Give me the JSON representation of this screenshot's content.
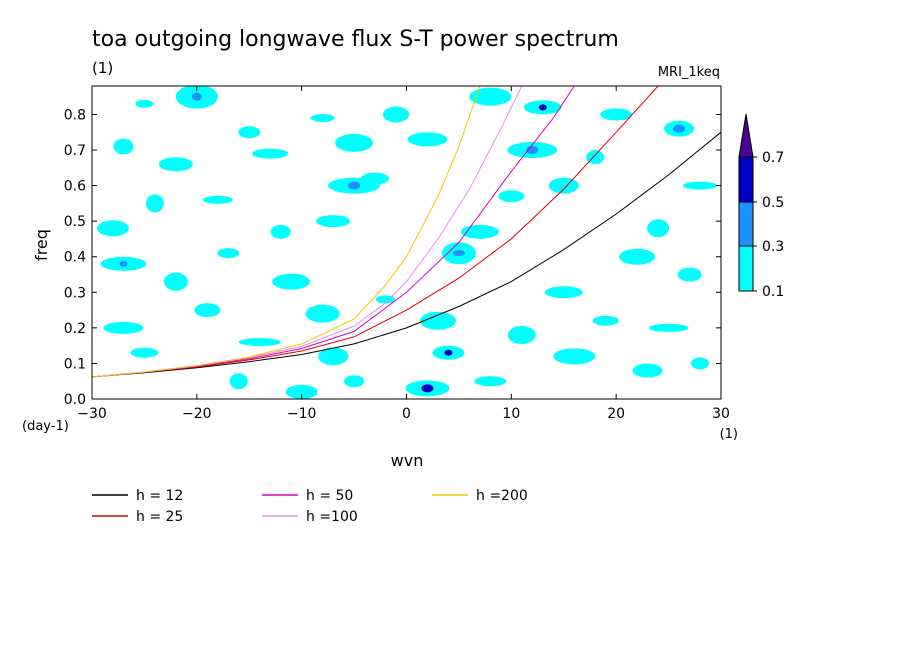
{
  "chart_data": {
    "type": "contour",
    "title": "toa outgoing longwave flux S-T power spectrum",
    "subtitle": "(1)",
    "model_label": "MRI_1keq",
    "xlabel": "wvn",
    "ylabel": "freq",
    "x_unit_label": "(1)",
    "y_unit_label": "(day-1)",
    "xlim": [
      -30,
      30
    ],
    "ylim": [
      0,
      0.88
    ],
    "xticks": [
      -30,
      -20,
      -10,
      0,
      10,
      20,
      30
    ],
    "yticks": [
      0.0,
      0.1,
      0.2,
      0.3,
      0.4,
      0.5,
      0.6,
      0.7,
      0.8
    ],
    "contour_levels": [
      0.1,
      0.3,
      0.5,
      0.7
    ],
    "level_colors": [
      "#00ffff",
      "#1e90ff",
      "#0000c8",
      "#4b0096"
    ],
    "colorbar_labels": [
      "0.1",
      "0.3",
      "0.5",
      "0.7"
    ],
    "colorbar_placement": "right",
    "background_color": "#ffffff",
    "series": [
      {
        "name": "h = 12",
        "color": "#000000",
        "x": [
          -30,
          -25,
          -20,
          -15,
          -10,
          -5,
          0,
          5,
          10,
          15,
          20,
          25,
          30
        ],
        "y": [
          0.062,
          0.074,
          0.088,
          0.105,
          0.125,
          0.155,
          0.2,
          0.26,
          0.33,
          0.42,
          0.52,
          0.63,
          0.75
        ]
      },
      {
        "name": "h = 25",
        "color": "#e00000",
        "x": [
          -30,
          -25,
          -20,
          -15,
          -10,
          -5,
          0,
          5,
          10,
          15,
          20,
          24
        ],
        "y": [
          0.062,
          0.075,
          0.09,
          0.11,
          0.135,
          0.175,
          0.25,
          0.34,
          0.45,
          0.59,
          0.75,
          0.88
        ]
      },
      {
        "name": "h = 50",
        "color": "#d800c0",
        "x": [
          -30,
          -25,
          -20,
          -15,
          -10,
          -5,
          0,
          5,
          10,
          14,
          16
        ],
        "y": [
          0.062,
          0.075,
          0.092,
          0.113,
          0.142,
          0.19,
          0.3,
          0.44,
          0.64,
          0.79,
          0.88
        ]
      },
      {
        "name": "h =100",
        "color": "#e090e8",
        "x": [
          -30,
          -25,
          -20,
          -15,
          -10,
          -5,
          -2,
          0,
          3,
          6,
          9,
          11
        ],
        "y": [
          0.062,
          0.076,
          0.093,
          0.116,
          0.148,
          0.205,
          0.27,
          0.33,
          0.45,
          0.59,
          0.76,
          0.88
        ]
      },
      {
        "name": "h =200",
        "color": "#f0c800",
        "x": [
          -30,
          -25,
          -20,
          -15,
          -10,
          -5,
          -2,
          0,
          3,
          5,
          7
        ],
        "y": [
          0.062,
          0.076,
          0.094,
          0.118,
          0.155,
          0.225,
          0.32,
          0.4,
          0.57,
          0.71,
          0.88
        ]
      }
    ],
    "legend_placement": "bottom",
    "shaded_regions": [
      {
        "x": -25,
        "y": 0.83,
        "level": 0.1
      },
      {
        "x": -20,
        "y": 0.85,
        "level": 0.3
      },
      {
        "x": -27,
        "y": 0.71,
        "level": 0.1
      },
      {
        "x": -22,
        "y": 0.66,
        "level": 0.1
      },
      {
        "x": -15,
        "y": 0.75,
        "level": 0.1
      },
      {
        "x": -13,
        "y": 0.69,
        "level": 0.1
      },
      {
        "x": -8,
        "y": 0.79,
        "level": 0.1
      },
      {
        "x": -5,
        "y": 0.72,
        "level": 0.1
      },
      {
        "x": -1,
        "y": 0.8,
        "level": 0.1
      },
      {
        "x": 2,
        "y": 0.73,
        "level": 0.1
      },
      {
        "x": -3,
        "y": 0.62,
        "level": 0.1
      },
      {
        "x": -5,
        "y": 0.6,
        "level": 0.3
      },
      {
        "x": -18,
        "y": 0.56,
        "level": 0.1
      },
      {
        "x": -24,
        "y": 0.55,
        "level": 0.1
      },
      {
        "x": -28,
        "y": 0.48,
        "level": 0.1
      },
      {
        "x": -12,
        "y": 0.47,
        "level": 0.1
      },
      {
        "x": -7,
        "y": 0.5,
        "level": 0.1
      },
      {
        "x": -17,
        "y": 0.41,
        "level": 0.1
      },
      {
        "x": -27,
        "y": 0.38,
        "level": 0.3
      },
      {
        "x": -22,
        "y": 0.33,
        "level": 0.1
      },
      {
        "x": -11,
        "y": 0.33,
        "level": 0.1
      },
      {
        "x": -19,
        "y": 0.25,
        "level": 0.1
      },
      {
        "x": -27,
        "y": 0.2,
        "level": 0.1
      },
      {
        "x": -25,
        "y": 0.13,
        "level": 0.1
      },
      {
        "x": -14,
        "y": 0.16,
        "level": 0.1
      },
      {
        "x": -7,
        "y": 0.12,
        "level": 0.1
      },
      {
        "x": -16,
        "y": 0.05,
        "level": 0.1
      },
      {
        "x": -10,
        "y": 0.02,
        "level": 0.1
      },
      {
        "x": -5,
        "y": 0.05,
        "level": 0.1
      },
      {
        "x": 2,
        "y": 0.03,
        "level": 0.5
      },
      {
        "x": 4,
        "y": 0.13,
        "level": 0.5
      },
      {
        "x": 3,
        "y": 0.22,
        "level": 0.1
      },
      {
        "x": 5,
        "y": 0.41,
        "level": 0.3
      },
      {
        "x": 7,
        "y": 0.47,
        "level": 0.1
      },
      {
        "x": 10,
        "y": 0.57,
        "level": 0.1
      },
      {
        "x": 12,
        "y": 0.7,
        "level": 0.3
      },
      {
        "x": 13,
        "y": 0.82,
        "level": 0.5
      },
      {
        "x": 8,
        "y": 0.85,
        "level": 0.1
      },
      {
        "x": 15,
        "y": 0.6,
        "level": 0.1
      },
      {
        "x": 18,
        "y": 0.68,
        "level": 0.1
      },
      {
        "x": 20,
        "y": 0.8,
        "level": 0.1
      },
      {
        "x": 26,
        "y": 0.76,
        "level": 0.3
      },
      {
        "x": 28,
        "y": 0.6,
        "level": 0.1
      },
      {
        "x": 24,
        "y": 0.48,
        "level": 0.1
      },
      {
        "x": 22,
        "y": 0.4,
        "level": 0.1
      },
      {
        "x": 27,
        "y": 0.35,
        "level": 0.1
      },
      {
        "x": 15,
        "y": 0.3,
        "level": 0.1
      },
      {
        "x": 19,
        "y": 0.22,
        "level": 0.1
      },
      {
        "x": 25,
        "y": 0.2,
        "level": 0.1
      },
      {
        "x": 11,
        "y": 0.18,
        "level": 0.1
      },
      {
        "x": 16,
        "y": 0.12,
        "level": 0.1
      },
      {
        "x": 23,
        "y": 0.08,
        "level": 0.1
      },
      {
        "x": 28,
        "y": 0.1,
        "level": 0.1
      },
      {
        "x": 8,
        "y": 0.05,
        "level": 0.1
      },
      {
        "x": -2,
        "y": 0.28,
        "level": 0.1
      },
      {
        "x": -8,
        "y": 0.24,
        "level": 0.1
      }
    ]
  }
}
